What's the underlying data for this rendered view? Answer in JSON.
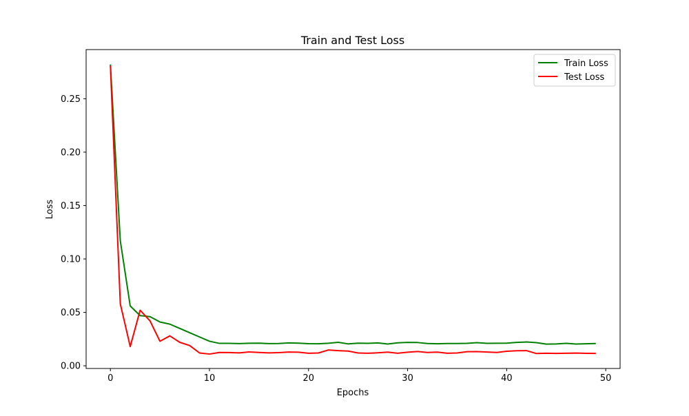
{
  "chart_data": {
    "type": "line",
    "title": "Train and Test Loss",
    "xlabel": "Epochs",
    "ylabel": "Loss",
    "xlim": [
      -2.45,
      51.45
    ],
    "ylim": [
      -0.0025,
      0.296
    ],
    "xticks": [
      0,
      10,
      20,
      30,
      40,
      50
    ],
    "yticks": [
      0.0,
      0.05,
      0.1,
      0.15,
      0.2,
      0.25
    ],
    "ytick_labels": [
      "0.00",
      "0.05",
      "0.10",
      "0.15",
      "0.20",
      "0.25"
    ],
    "grid": false,
    "legend_position": "top-right",
    "x": [
      0,
      1,
      2,
      3,
      4,
      5,
      6,
      7,
      8,
      9,
      10,
      11,
      12,
      13,
      14,
      15,
      16,
      17,
      18,
      19,
      20,
      21,
      22,
      23,
      24,
      25,
      26,
      27,
      28,
      29,
      30,
      31,
      32,
      33,
      34,
      35,
      36,
      37,
      38,
      39,
      40,
      41,
      42,
      43,
      44,
      45,
      46,
      47,
      48,
      49
    ],
    "series": [
      {
        "name": "Train Loss",
        "color": "#008000",
        "values": [
          0.282,
          0.117,
          0.056,
          0.047,
          0.046,
          0.041,
          0.039,
          0.035,
          0.031,
          0.027,
          0.023,
          0.021,
          0.021,
          0.0208,
          0.0211,
          0.0212,
          0.0208,
          0.0209,
          0.0214,
          0.0212,
          0.0207,
          0.0206,
          0.0211,
          0.022,
          0.0205,
          0.0212,
          0.021,
          0.0214,
          0.0204,
          0.0215,
          0.0219,
          0.0218,
          0.0209,
          0.0206,
          0.0209,
          0.0209,
          0.021,
          0.0217,
          0.021,
          0.0211,
          0.0212,
          0.0219,
          0.0223,
          0.0217,
          0.0203,
          0.0205,
          0.021,
          0.0204,
          0.0206,
          0.0209
        ]
      },
      {
        "name": "Test Loss",
        "color": "#ff0000",
        "values": [
          0.281,
          0.058,
          0.018,
          0.052,
          0.042,
          0.023,
          0.028,
          0.022,
          0.019,
          0.012,
          0.011,
          0.0125,
          0.0124,
          0.0121,
          0.013,
          0.0125,
          0.0121,
          0.0123,
          0.0129,
          0.0127,
          0.0118,
          0.012,
          0.0148,
          0.0142,
          0.0138,
          0.012,
          0.0118,
          0.0122,
          0.0128,
          0.0118,
          0.0127,
          0.0134,
          0.0125,
          0.0128,
          0.0118,
          0.012,
          0.0132,
          0.0133,
          0.0129,
          0.0125,
          0.0136,
          0.0141,
          0.0142,
          0.0115,
          0.0118,
          0.0116,
          0.0118,
          0.0119,
          0.0117,
          0.0116
        ]
      }
    ]
  }
}
